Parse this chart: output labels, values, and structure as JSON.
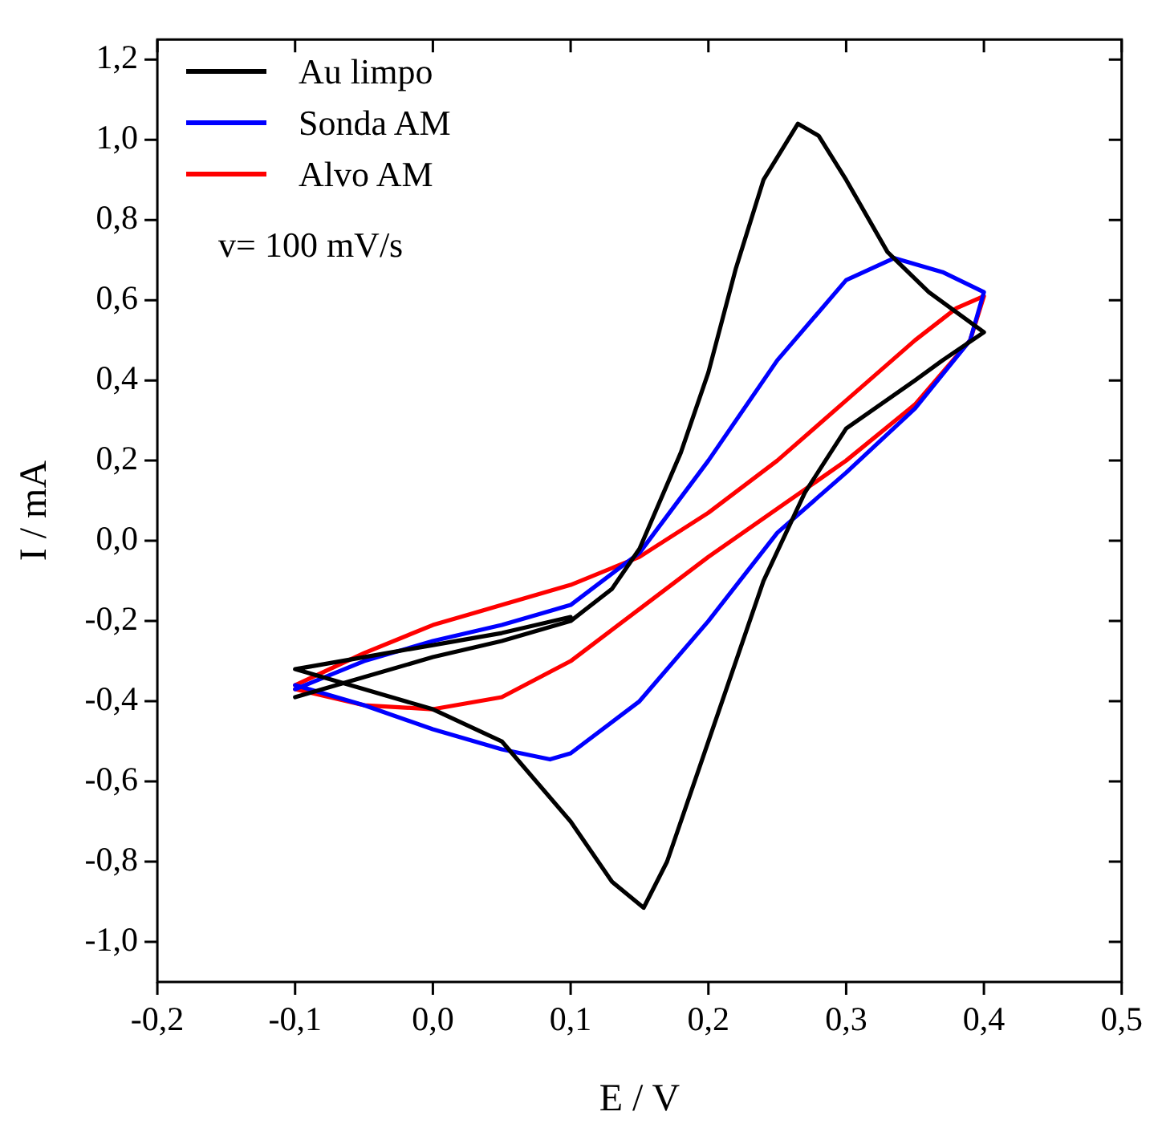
{
  "chart_data": {
    "type": "line",
    "xlabel": "E / V",
    "ylabel": "I / mA",
    "annotations": [
      "v= 100 mV/s"
    ],
    "xlim": [
      -0.2,
      0.5
    ],
    "ylim": [
      -1.1,
      1.25
    ],
    "xticks": [
      {
        "value": -0.2,
        "label": "-0,2"
      },
      {
        "value": -0.1,
        "label": "-0,1"
      },
      {
        "value": 0,
        "label": "0,0"
      },
      {
        "value": 0.1,
        "label": "0,1"
      },
      {
        "value": 0.2,
        "label": "0,2"
      },
      {
        "value": 0.3,
        "label": "0,3"
      },
      {
        "value": 0.4,
        "label": "0,4"
      },
      {
        "value": 0.5,
        "label": "0,5"
      }
    ],
    "yticks": [
      {
        "value": -1,
        "label": "-1,0"
      },
      {
        "value": -0.8,
        "label": "-0,8"
      },
      {
        "value": -0.6,
        "label": "-0,6"
      },
      {
        "value": -0.4,
        "label": "-0,4"
      },
      {
        "value": -0.2,
        "label": "-0,2"
      },
      {
        "value": 0,
        "label": "0,0"
      },
      {
        "value": 0.2,
        "label": "0,2"
      },
      {
        "value": 0.4,
        "label": "0,4"
      },
      {
        "value": 0.6,
        "label": "0,6"
      },
      {
        "value": 0.8,
        "label": "0,8"
      },
      {
        "value": 1,
        "label": "1,0"
      },
      {
        "value": 1.2,
        "label": "1,2"
      }
    ],
    "grid": false,
    "legend": "top left",
    "marker": "none",
    "line_style": "solid",
    "series": [
      {
        "name": "Au limpo",
        "color": "#000000",
        "x": [
          -0.1,
          -0.05,
          0,
          0.05,
          0.1,
          0.13,
          0.15,
          0.18,
          0.2,
          0.22,
          0.24,
          0.265,
          0.28,
          0.3,
          0.33,
          0.36,
          0.4,
          0.37,
          0.35,
          0.3,
          0.27,
          0.24,
          0.22,
          0.2,
          0.17,
          0.153,
          0.13,
          0.1,
          0.05,
          0,
          -0.05,
          -0.1,
          -0.05,
          0,
          0.05,
          0.1
        ],
        "values": [
          -0.39,
          -0.34,
          -0.29,
          -0.25,
          -0.2,
          -0.12,
          -0.02,
          0.22,
          0.42,
          0.68,
          0.9,
          1.04,
          1.01,
          0.9,
          0.72,
          0.62,
          0.52,
          0.45,
          0.4,
          0.28,
          0.12,
          -0.1,
          -0.3,
          -0.5,
          -0.8,
          -0.915,
          -0.85,
          -0.7,
          -0.5,
          -0.42,
          -0.37,
          -0.32,
          -0.29,
          -0.26,
          -0.23,
          -0.19
        ]
      },
      {
        "name": "Sonda AM",
        "color": "#0000ff",
        "x": [
          -0.1,
          -0.05,
          0,
          0.05,
          0.1,
          0.15,
          0.2,
          0.25,
          0.3,
          0.335,
          0.37,
          0.4,
          0.39,
          0.35,
          0.3,
          0.25,
          0.2,
          0.15,
          0.1,
          0.085,
          0.05,
          0,
          -0.05,
          -0.1
        ],
        "values": [
          -0.37,
          -0.3,
          -0.25,
          -0.21,
          -0.16,
          -0.03,
          0.2,
          0.45,
          0.65,
          0.705,
          0.67,
          0.62,
          0.5,
          0.33,
          0.17,
          0.02,
          -0.2,
          -0.4,
          -0.53,
          -0.545,
          -0.52,
          -0.47,
          -0.41,
          -0.36
        ]
      },
      {
        "name": "Alvo AM",
        "color": "#ff0000",
        "x": [
          -0.1,
          -0.05,
          0,
          0.05,
          0.1,
          0.15,
          0.2,
          0.25,
          0.3,
          0.35,
          0.38,
          0.4,
          0.39,
          0.35,
          0.3,
          0.25,
          0.2,
          0.15,
          0.1,
          0.05,
          0,
          -0.05,
          -0.1
        ],
        "values": [
          -0.36,
          -0.28,
          -0.21,
          -0.16,
          -0.11,
          -0.04,
          0.07,
          0.2,
          0.35,
          0.5,
          0.58,
          0.61,
          0.5,
          0.34,
          0.2,
          0.08,
          -0.04,
          -0.17,
          -0.3,
          -0.39,
          -0.42,
          -0.41,
          -0.37
        ]
      }
    ]
  }
}
